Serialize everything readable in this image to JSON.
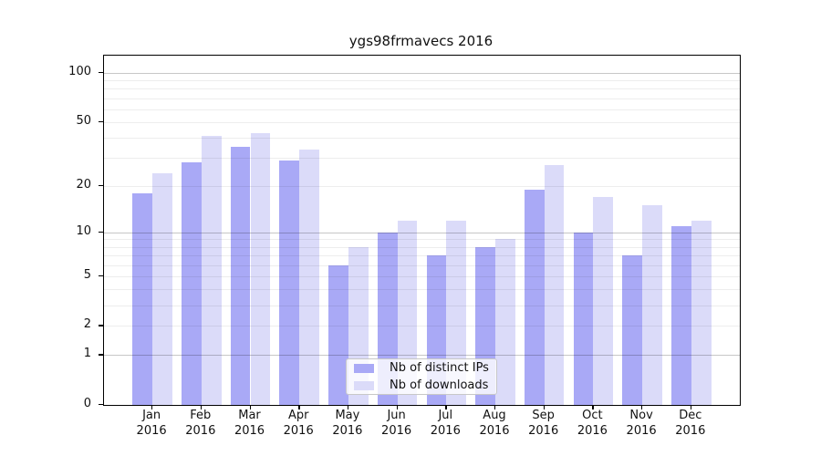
{
  "chart_data": {
    "type": "bar",
    "title": "ygs98frmavecs 2016",
    "categories": [
      "Jan",
      "Feb",
      "Mar",
      "Apr",
      "May",
      "Jun",
      "Jul",
      "Aug",
      "Sep",
      "Oct",
      "Nov",
      "Dec"
    ],
    "category_year": "2016",
    "series": [
      {
        "name": "Nb of distinct IPs",
        "color": "#a9a9f6",
        "values": [
          18,
          28,
          35,
          29,
          6,
          10,
          7,
          8,
          19,
          10,
          7,
          11
        ]
      },
      {
        "name": "Nb of downloads",
        "color": "#dbdbf9",
        "values": [
          24,
          41,
          43,
          34,
          8,
          12,
          12,
          9,
          27,
          17,
          15,
          12
        ]
      }
    ],
    "yscale": "log1p",
    "yticks": [
      0,
      1,
      2,
      5,
      10,
      20,
      50,
      100
    ],
    "minor_gridlines": [
      2,
      3,
      4,
      5,
      6,
      7,
      8,
      9,
      20,
      30,
      40,
      50,
      60,
      70,
      80,
      90
    ],
    "major_gridlines": [
      1,
      10,
      100
    ],
    "ylim": [
      0,
      130
    ],
    "xlabel": "",
    "ylabel": "",
    "grid": "horizontal",
    "legend_position": "bottom-center",
    "axis_color": "#000000",
    "background": "#ffffff"
  }
}
